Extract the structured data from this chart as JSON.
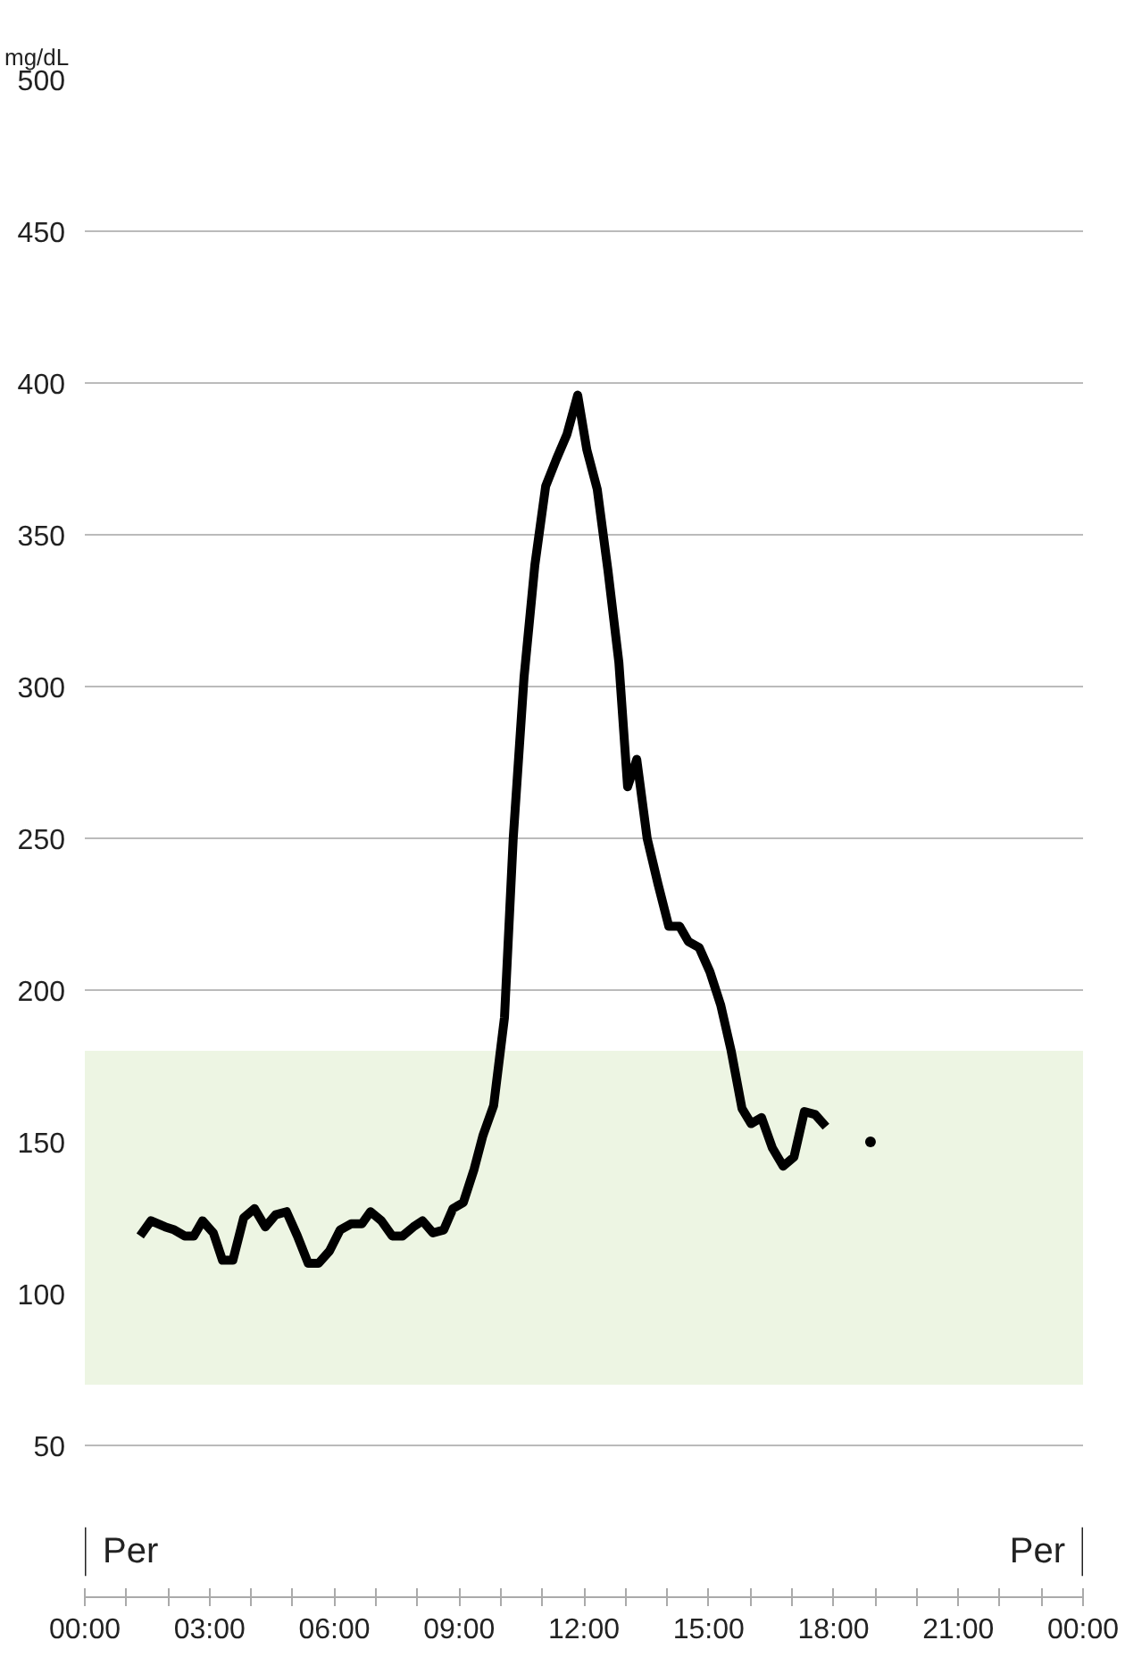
{
  "chart_data": {
    "type": "line",
    "ylabel": "mg/dL",
    "x": [
      1.33,
      1.59,
      1.93,
      2.15,
      2.4,
      2.62,
      2.83,
      3.09,
      3.31,
      3.56,
      3.82,
      4.08,
      4.34,
      4.59,
      4.85,
      5.11,
      5.37,
      5.62,
      5.88,
      6.14,
      6.4,
      6.66,
      6.87,
      7.13,
      7.39,
      7.64,
      7.9,
      8.12,
      8.37,
      8.63,
      8.85,
      9.1,
      9.36,
      9.57,
      9.83,
      10.09,
      10.3,
      10.56,
      10.82,
      11.08,
      11.34,
      11.59,
      11.85,
      12.07,
      12.32,
      12.58,
      12.84,
      13.05,
      13.27,
      13.52,
      13.78,
      14.04,
      14.3,
      14.51,
      14.77,
      15.03,
      15.29,
      15.54,
      15.8,
      16.02,
      16.27,
      16.53,
      16.79,
      17.05,
      17.3,
      17.56,
      17.82
    ],
    "series": [
      {
        "color": "#000000",
        "values": [
          119,
          124,
          122,
          121,
          119,
          119,
          124,
          120,
          111,
          111,
          125,
          128,
          122,
          126,
          127,
          119,
          110,
          110,
          114,
          121,
          123,
          123,
          127,
          124,
          119,
          119,
          122,
          124,
          120,
          121,
          128,
          130,
          141,
          152,
          162,
          191,
          250,
          303,
          340,
          366,
          375,
          383,
          396,
          378,
          365,
          338,
          308,
          267,
          276,
          250,
          235,
          221,
          221,
          216,
          214,
          206,
          195,
          180,
          161,
          156,
          158,
          148,
          142,
          145,
          160,
          159,
          155
        ]
      },
      {
        "type": "scatter",
        "color": "#000000",
        "x": [
          18.89
        ],
        "values": [
          150
        ]
      }
    ],
    "xlim": [
      0,
      24
    ],
    "xticks": [
      {
        "value": 0,
        "label": "00:00"
      },
      {
        "value": 1,
        "label": null
      },
      {
        "value": 2,
        "label": null
      },
      {
        "value": 3,
        "label": "03:00"
      },
      {
        "value": 4,
        "label": null
      },
      {
        "value": 5,
        "label": null
      },
      {
        "value": 6,
        "label": "06:00"
      },
      {
        "value": 7,
        "label": null
      },
      {
        "value": 8,
        "label": null
      },
      {
        "value": 9,
        "label": "09:00"
      },
      {
        "value": 10,
        "label": null
      },
      {
        "value": 11,
        "label": null
      },
      {
        "value": 12,
        "label": "12:00"
      },
      {
        "value": 13,
        "label": null
      },
      {
        "value": 14,
        "label": null
      },
      {
        "value": 15,
        "label": "15:00"
      },
      {
        "value": 16,
        "label": null
      },
      {
        "value": 17,
        "label": null
      },
      {
        "value": 18,
        "label": "18:00"
      },
      {
        "value": 19,
        "label": null
      },
      {
        "value": 20,
        "label": null
      },
      {
        "value": 21,
        "label": "21:00"
      },
      {
        "value": 22,
        "label": null
      },
      {
        "value": 23,
        "label": null
      },
      {
        "value": 24,
        "label": "00:00"
      }
    ],
    "ylim": [
      0,
      500
    ],
    "yticks": [
      50,
      100,
      150,
      200,
      250,
      300,
      350,
      400,
      450,
      500
    ],
    "bands": [
      {
        "axis": "y",
        "from": 70,
        "to": 180,
        "color": "#edf5e3"
      }
    ],
    "annotations": [
      "Per",
      "Per"
    ],
    "grid": "y",
    "line_style": "solid"
  }
}
